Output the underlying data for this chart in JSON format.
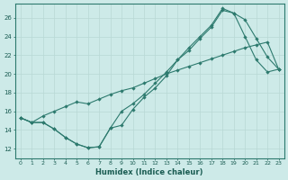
{
  "xlabel": "Humidex (Indice chaleur)",
  "bg_color": "#cdeae8",
  "line_color": "#2d7a6e",
  "grid_color": "#b8d8d5",
  "xlim": [
    -0.5,
    23.5
  ],
  "ylim": [
    11.0,
    27.5
  ],
  "xticks": [
    0,
    1,
    2,
    3,
    4,
    5,
    6,
    7,
    8,
    9,
    10,
    11,
    12,
    13,
    14,
    15,
    16,
    17,
    18,
    19,
    20,
    21,
    22,
    23
  ],
  "yticks": [
    12,
    14,
    16,
    18,
    20,
    22,
    24,
    26
  ],
  "line1_x": [
    0,
    1,
    2,
    3,
    4,
    5,
    6,
    7,
    8,
    9,
    10,
    11,
    12,
    13,
    14,
    15,
    16,
    17,
    18,
    19,
    20,
    21,
    22,
    23
  ],
  "line1_y": [
    15.3,
    14.8,
    14.8,
    14.1,
    13.2,
    12.5,
    12.1,
    12.2,
    14.2,
    14.5,
    16.2,
    17.5,
    18.5,
    19.8,
    21.5,
    22.5,
    23.8,
    25.0,
    26.8,
    26.5,
    24.0,
    21.5,
    20.2,
    20.5
  ],
  "line2_x": [
    0,
    1,
    2,
    3,
    4,
    5,
    6,
    7,
    8,
    9,
    10,
    11,
    12,
    13,
    14,
    15,
    16,
    17,
    18,
    19,
    20,
    21,
    22,
    23
  ],
  "line2_y": [
    15.3,
    14.8,
    14.8,
    14.1,
    13.2,
    12.5,
    12.1,
    12.2,
    14.2,
    16.0,
    16.8,
    17.8,
    19.0,
    20.2,
    21.5,
    22.8,
    24.0,
    25.2,
    27.0,
    26.5,
    25.8,
    23.8,
    21.8,
    20.5
  ],
  "line3_x": [
    0,
    1,
    2,
    3,
    4,
    5,
    6,
    7,
    8,
    9,
    10,
    11,
    12,
    13,
    14,
    15,
    16,
    17,
    18,
    19,
    20,
    21,
    22,
    23
  ],
  "line3_y": [
    15.3,
    14.8,
    15.5,
    16.0,
    16.5,
    17.0,
    16.8,
    17.3,
    17.8,
    18.2,
    18.5,
    19.0,
    19.5,
    20.0,
    20.4,
    20.8,
    21.2,
    21.6,
    22.0,
    22.4,
    22.8,
    23.1,
    23.4,
    20.5
  ]
}
